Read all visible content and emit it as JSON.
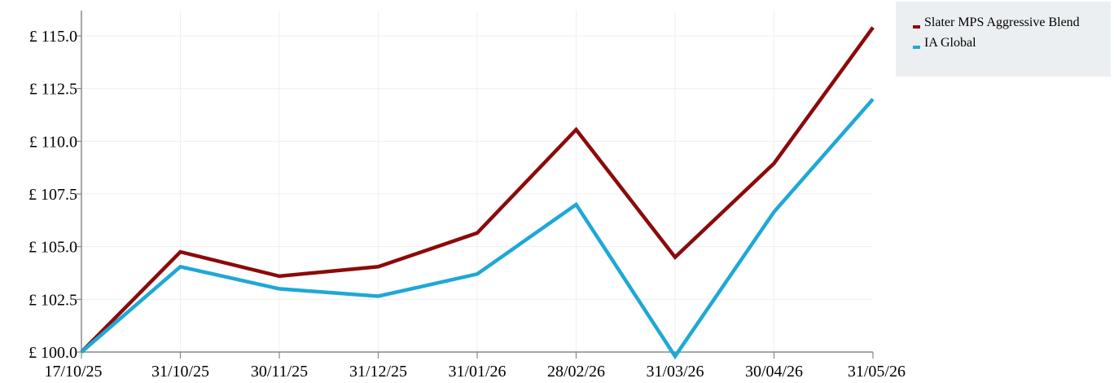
{
  "chart_data": {
    "type": "line",
    "title": "",
    "xlabel": "",
    "ylabel": "",
    "categories": [
      "17/10/25",
      "31/10/25",
      "30/11/25",
      "31/12/25",
      "31/01/26",
      "28/02/26",
      "31/03/26",
      "30/04/26",
      "31/05/26"
    ],
    "y_ticks": [
      "£ 100.0",
      "£ 102.5",
      "£ 105.0",
      "£ 107.5",
      "£ 110.0",
      "£ 112.5",
      "£ 115.0"
    ],
    "y_tick_values": [
      100.0,
      102.5,
      105.0,
      107.5,
      110.0,
      112.5,
      115.0
    ],
    "ylim": [
      100.0,
      116.2
    ],
    "grid": true,
    "legend_position": "top-right",
    "series": [
      {
        "name": "Slater MPS Aggressive Blend",
        "color": "#8b0a0a",
        "values": [
          100.0,
          104.75,
          103.6,
          104.05,
          105.65,
          110.55,
          104.5,
          108.95,
          115.4
        ]
      },
      {
        "name": "IA Global",
        "color": "#1ea8d6",
        "values": [
          100.0,
          104.05,
          103.0,
          102.65,
          103.7,
          107.0,
          99.8,
          106.65,
          112.0
        ]
      }
    ]
  }
}
